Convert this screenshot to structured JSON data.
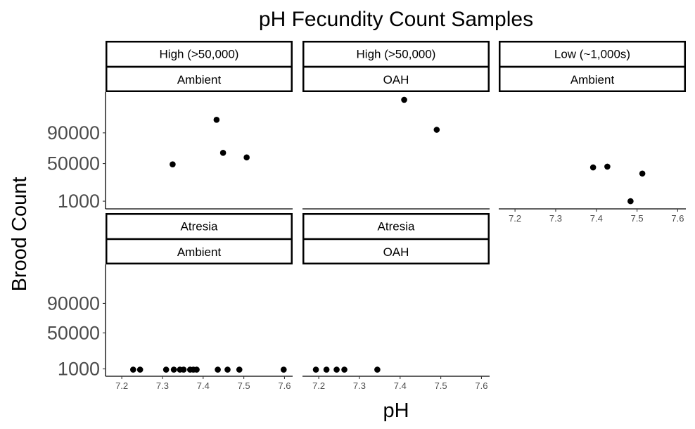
{
  "chart_data": {
    "type": "scatter",
    "title": "pH Fecundity Count Samples",
    "xlabel": "pH",
    "ylabel": "Brood Count",
    "xlim": [
      7.16,
      7.62
    ],
    "ylim": [
      -9000,
      143000
    ],
    "x_ticks": [
      "7.2",
      "7.3",
      "7.4",
      "7.5",
      "7.6"
    ],
    "x_tick_values": [
      7.2,
      7.3,
      7.4,
      7.5,
      7.6
    ],
    "y_ticks": [
      "1000",
      "50000",
      "90000"
    ],
    "y_tick_values": [
      1000,
      50000,
      90000
    ],
    "grid": false,
    "legend": "none",
    "point_color": "#000000",
    "panels": [
      {
        "strip_top": "High (>50,000)",
        "strip_bottom": "Ambient",
        "row": 0,
        "col": 0,
        "points": [
          {
            "x": 7.325,
            "y": 49000
          },
          {
            "x": 7.433,
            "y": 107000
          },
          {
            "x": 7.449,
            "y": 64000
          },
          {
            "x": 7.507,
            "y": 58000
          }
        ]
      },
      {
        "strip_top": "High (>50,000)",
        "strip_bottom": "OAH",
        "row": 0,
        "col": 1,
        "points": [
          {
            "x": 7.41,
            "y": 133000
          },
          {
            "x": 7.49,
            "y": 94000
          }
        ]
      },
      {
        "strip_top": "Low (~1,000s)",
        "strip_bottom": "Ambient",
        "row": 0,
        "col": 2,
        "points": [
          {
            "x": 7.392,
            "y": 45000
          },
          {
            "x": 7.427,
            "y": 46000
          },
          {
            "x": 7.484,
            "y": 1000
          },
          {
            "x": 7.513,
            "y": 37000
          }
        ]
      },
      {
        "strip_top": "Atresia",
        "strip_bottom": "Ambient",
        "row": 1,
        "col": 0,
        "points": [
          {
            "x": 7.228,
            "y": 0
          },
          {
            "x": 7.245,
            "y": 0
          },
          {
            "x": 7.309,
            "y": 0
          },
          {
            "x": 7.328,
            "y": 0
          },
          {
            "x": 7.343,
            "y": 0
          },
          {
            "x": 7.352,
            "y": 0
          },
          {
            "x": 7.368,
            "y": 0
          },
          {
            "x": 7.376,
            "y": 0
          },
          {
            "x": 7.384,
            "y": 0
          },
          {
            "x": 7.436,
            "y": 0
          },
          {
            "x": 7.46,
            "y": 0
          },
          {
            "x": 7.489,
            "y": 0
          },
          {
            "x": 7.598,
            "y": 0
          }
        ]
      },
      {
        "strip_top": "Atresia",
        "strip_bottom": "OAH",
        "row": 1,
        "col": 1,
        "points": [
          {
            "x": 7.193,
            "y": 0
          },
          {
            "x": 7.219,
            "y": 0
          },
          {
            "x": 7.244,
            "y": 0
          },
          {
            "x": 7.263,
            "y": 0
          },
          {
            "x": 7.344,
            "y": 0
          }
        ]
      }
    ]
  }
}
